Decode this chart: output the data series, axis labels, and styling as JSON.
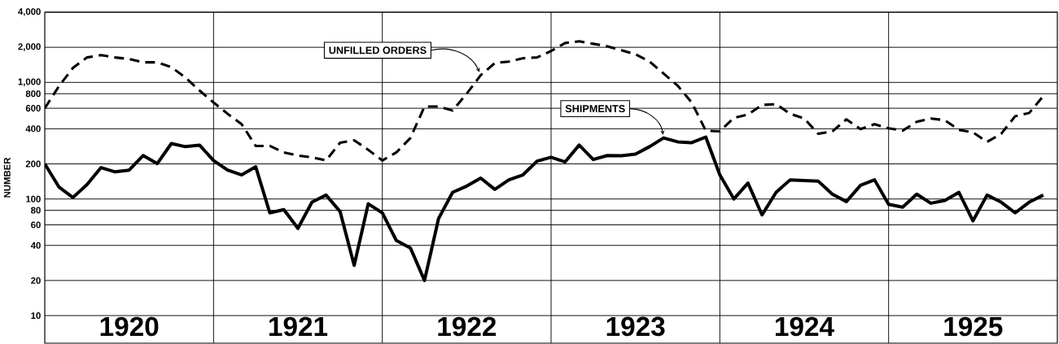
{
  "chart_data": {
    "type": "line",
    "ylabel": "NUMBER",
    "log": true,
    "grid": true,
    "marker": "none",
    "x": [
      "1920-01",
      "1920-02",
      "1920-03",
      "1920-04",
      "1920-05",
      "1920-06",
      "1920-07",
      "1920-08",
      "1920-09",
      "1920-10",
      "1920-11",
      "1920-12",
      "1921-01",
      "1921-02",
      "1921-03",
      "1921-04",
      "1921-05",
      "1921-06",
      "1921-07",
      "1921-08",
      "1921-09",
      "1921-10",
      "1921-11",
      "1921-12",
      "1922-01",
      "1922-02",
      "1922-03",
      "1922-04",
      "1922-05",
      "1922-06",
      "1922-07",
      "1922-08",
      "1922-09",
      "1922-10",
      "1922-11",
      "1922-12",
      "1923-01",
      "1923-02",
      "1923-03",
      "1923-04",
      "1923-05",
      "1923-06",
      "1923-07",
      "1923-08",
      "1923-09",
      "1923-10",
      "1923-11",
      "1923-12",
      "1924-01",
      "1924-02",
      "1924-03",
      "1924-04",
      "1924-05",
      "1924-06",
      "1924-07",
      "1924-08",
      "1924-09",
      "1924-10",
      "1924-11",
      "1924-12",
      "1925-01",
      "1925-02",
      "1925-03",
      "1925-04",
      "1925-05",
      "1925-06",
      "1925-07",
      "1925-08",
      "1925-09",
      "1925-10",
      "1925-11",
      "1925-12"
    ],
    "series": [
      {
        "color": "#000000",
        "line_style": "solid",
        "values": [
          200,
          127,
          103,
          133,
          186,
          171,
          177,
          236,
          201,
          299,
          281,
          290,
          214,
          177,
          161,
          189,
          76,
          81,
          56,
          94,
          108,
          78,
          27,
          91,
          76,
          44,
          38,
          20,
          68,
          114,
          129,
          151,
          121,
          146,
          161,
          211,
          228,
          208,
          290,
          218,
          236,
          235,
          243,
          281,
          334,
          309,
          304,
          340,
          161,
          100,
          137,
          73,
          114,
          146,
          144,
          142,
          110,
          95,
          131,
          146,
          90,
          85,
          110,
          92,
          97,
          114,
          65,
          108,
          94,
          76,
          94,
          108
        ]
      },
      {
        "color": "#000000",
        "line_style": "dashed",
        "values": [
          600,
          925,
          1330,
          1637,
          1714,
          1637,
          1585,
          1486,
          1486,
          1352,
          1100,
          853,
          673,
          538,
          438,
          285,
          285,
          251,
          236,
          228,
          214,
          304,
          319,
          264,
          214,
          251,
          334,
          621,
          621,
          574,
          800,
          1153,
          1465,
          1510,
          1611,
          1637,
          1858,
          2177,
          2250,
          2142,
          2040,
          1888,
          1742,
          1510,
          1191,
          938,
          673,
          386,
          380,
          497,
          530,
          641,
          651,
          538,
          490,
          362,
          380,
          482,
          398,
          438,
          404,
          386,
          459,
          490,
          474,
          392,
          373,
          309,
          362,
          513,
          547,
          764
        ]
      }
    ],
    "xlim": [
      "1920-01",
      "1926-01"
    ],
    "xticks": [
      {
        "value": "1921-01",
        "label": null
      },
      {
        "value": "1922-01",
        "label": null
      },
      {
        "value": "1923-01",
        "label": null
      },
      {
        "value": "1924-01",
        "label": null
      },
      {
        "value": "1925-01",
        "label": null
      },
      {
        "value": "1920-07",
        "label": "1920"
      },
      {
        "value": "1921-07",
        "label": "1921"
      },
      {
        "value": "1922-07",
        "label": "1922"
      },
      {
        "value": "1923-07",
        "label": "1923"
      },
      {
        "value": "1924-07",
        "label": "1924"
      },
      {
        "value": "1925-07",
        "label": "1925"
      }
    ],
    "ylim": [
      5.8,
      4000
    ],
    "yticks": [
      10,
      20,
      40,
      60,
      80,
      100,
      200,
      400,
      600,
      800,
      {
        "value": 1000,
        "label": "1,000"
      },
      {
        "value": 2000,
        "label": "2,000"
      },
      {
        "value": 4000,
        "label": "4,000"
      }
    ],
    "annotations": [
      {
        "text": "UNFILLED ORDERS",
        "x": "1922-08",
        "y": 1153
      },
      {
        "text": "SHIPMENTS",
        "x": "1923-09",
        "y": 334
      }
    ]
  }
}
